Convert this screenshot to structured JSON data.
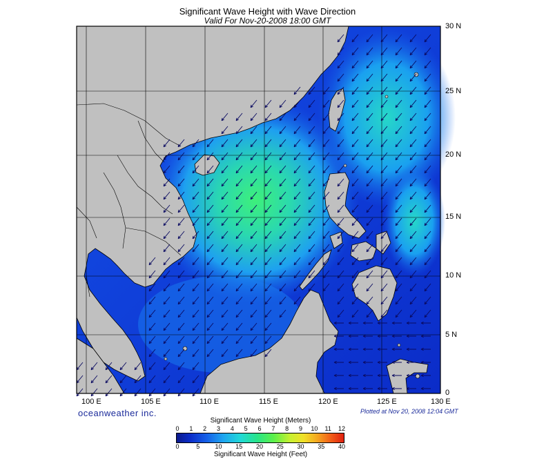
{
  "title": "Significant Wave Height with Wave Direction",
  "subtitle": "Valid For Nov-20-2008 18:00 GMT",
  "longitude_labels": [
    "100 E",
    "105 E",
    "110 E",
    "115 E",
    "120 E",
    "125 E",
    "130 E"
  ],
  "latitude_labels": [
    "30 N",
    "25 N",
    "20 N",
    "15 N",
    "10 N",
    "5 N",
    "0"
  ],
  "brand": "oceanweather inc.",
  "plotted": "Plotted at Nov 20, 2008 12:04 GMT",
  "legend": {
    "meters_title": "Significant Wave Height (Meters)",
    "feet_title": "Significant Wave Height (Feet)",
    "meters_ticks": [
      "0",
      "1",
      "2",
      "3",
      "4",
      "5",
      "6",
      "7",
      "8",
      "9",
      "10",
      "11",
      "12"
    ],
    "feet_ticks": [
      "0",
      "5",
      "10",
      "15",
      "20",
      "25",
      "30",
      "35",
      "40"
    ]
  },
  "colors": {
    "land": "#c0c0c0",
    "sea_low": "#0b2cc8",
    "sea_mid": "#1ea6f0",
    "sea_high": "#3ee878"
  }
}
